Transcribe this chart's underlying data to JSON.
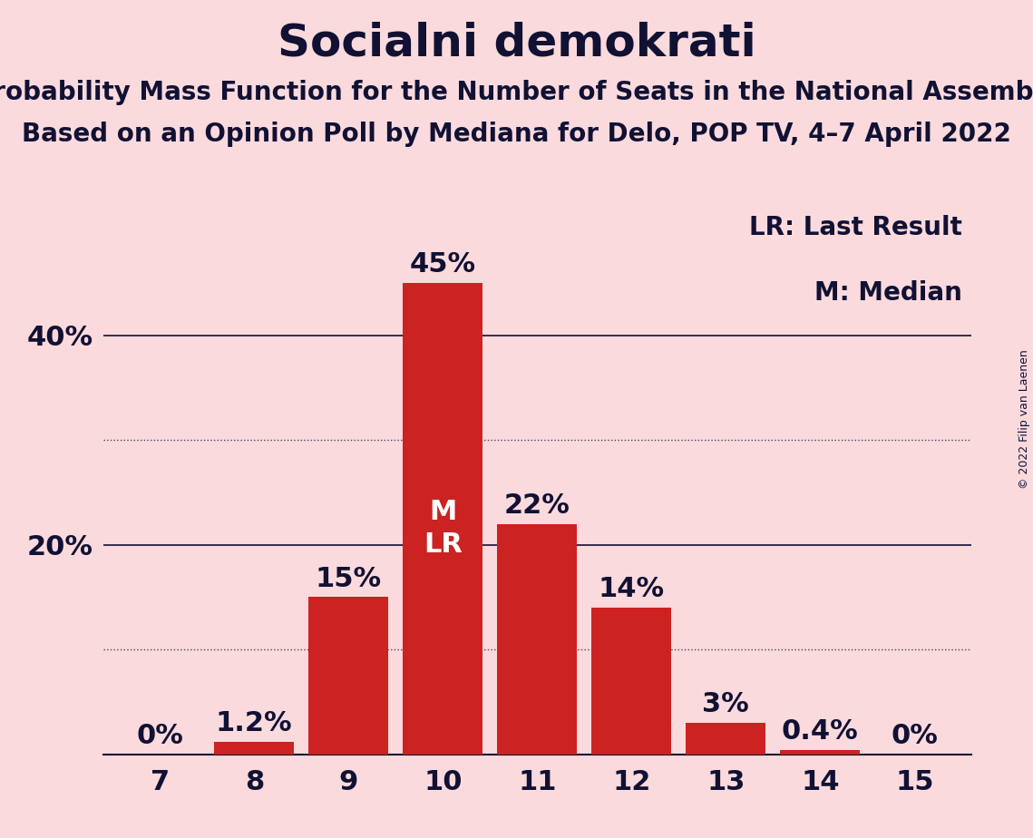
{
  "title": "Socialni demokrati",
  "subtitle1": "Probability Mass Function for the Number of Seats in the National Assembly",
  "subtitle2": "Based on an Opinion Poll by Mediana for Delo, POP TV, 4–7 April 2022",
  "copyright": "© 2022 Filip van Laenen",
  "categories": [
    7,
    8,
    9,
    10,
    11,
    12,
    13,
    14,
    15
  ],
  "values": [
    0.0,
    1.2,
    15.0,
    45.0,
    22.0,
    14.0,
    3.0,
    0.4,
    0.0
  ],
  "bar_color": "#cc2222",
  "background_color": "#fadadd",
  "label_color_outside": "#111133",
  "label_color_inside": "#ffffff",
  "solid_gridlines": [
    20,
    40
  ],
  "dotted_gridlines": [
    10,
    30
  ],
  "median_seat": 10,
  "last_result_seat": 10,
  "legend_line1": "LR: Last Result",
  "legend_line2": "M: Median",
  "bar_label_fontsize": 22,
  "title_fontsize": 36,
  "subtitle_fontsize": 20,
  "tick_fontsize": 22,
  "legend_fontsize": 20,
  "copyright_fontsize": 9,
  "ylim_max": 52
}
